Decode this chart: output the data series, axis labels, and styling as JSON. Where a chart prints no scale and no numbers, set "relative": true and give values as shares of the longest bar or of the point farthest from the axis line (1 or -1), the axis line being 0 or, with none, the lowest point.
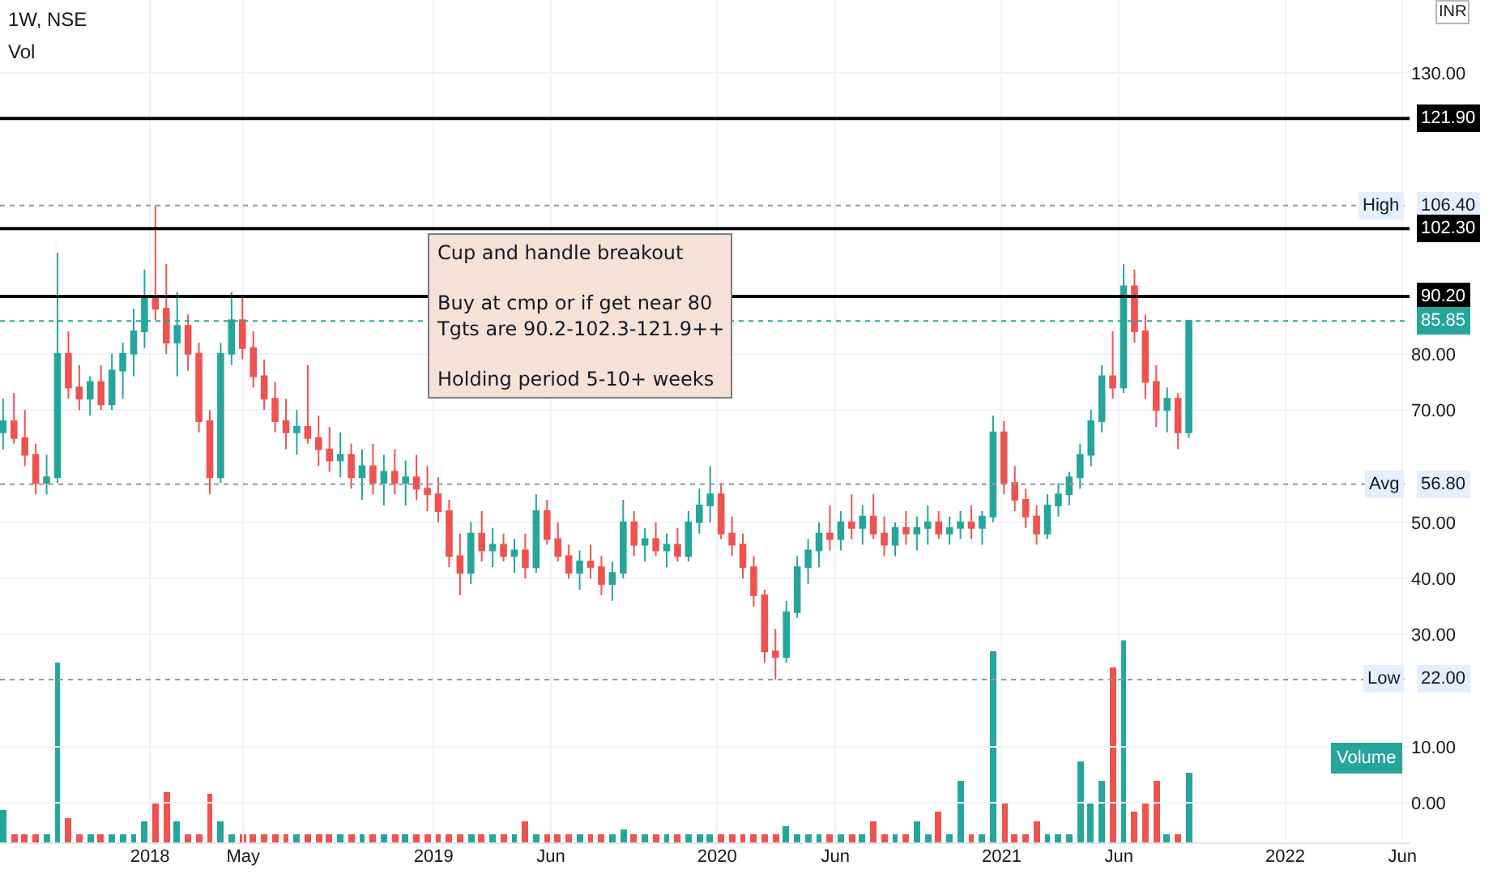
{
  "chart_data": [
    {
      "type": "candlestick",
      "title": "1W, NSE",
      "subtitle": "Vol",
      "ylabel": "INR",
      "x": [
        "2017-06-26",
        "2017-07-10",
        "2017-07-24",
        "2017-08-07",
        "2017-08-21",
        "2017-09-04",
        "2017-09-18",
        "2017-10-02",
        "2017-10-16",
        "2017-10-30",
        "2017-11-13",
        "2017-11-27",
        "2017-12-11",
        "2017-12-25",
        "2018-01-08",
        "2018-01-22",
        "2018-02-05",
        "2018-02-19",
        "2018-03-05",
        "2018-03-19",
        "2018-04-02",
        "2018-04-16",
        "2018-04-30",
        "2018-05-14",
        "2018-05-28",
        "2018-06-11",
        "2018-06-25",
        "2018-07-09",
        "2018-07-23",
        "2018-08-06",
        "2018-08-20",
        "2018-09-03",
        "2018-09-17",
        "2018-10-01",
        "2018-10-15",
        "2018-10-29",
        "2018-11-12",
        "2018-11-26",
        "2018-12-10",
        "2018-12-24",
        "2019-01-07",
        "2019-01-21",
        "2019-02-04",
        "2019-02-18",
        "2019-03-04",
        "2019-03-18",
        "2019-04-01",
        "2019-04-15",
        "2019-04-29",
        "2019-05-13",
        "2019-05-27",
        "2019-06-10",
        "2019-06-24",
        "2019-07-08",
        "2019-07-22",
        "2019-08-05",
        "2019-08-19",
        "2019-09-02",
        "2019-09-16",
        "2019-09-30",
        "2019-10-14",
        "2019-10-28",
        "2019-11-11",
        "2019-11-25",
        "2019-12-09",
        "2019-12-23",
        "2020-01-06",
        "2020-01-20",
        "2020-02-03",
        "2020-02-17",
        "2020-03-02",
        "2020-03-16",
        "2020-03-30",
        "2020-04-13",
        "2020-04-27",
        "2020-05-11",
        "2020-05-25",
        "2020-06-08",
        "2020-06-22",
        "2020-07-06",
        "2020-07-20",
        "2020-08-03",
        "2020-08-17",
        "2020-08-31",
        "2020-09-14",
        "2020-09-28",
        "2020-10-12",
        "2020-10-26",
        "2020-11-09",
        "2020-11-23",
        "2020-12-07",
        "2020-12-21",
        "2021-01-04",
        "2021-01-18",
        "2021-02-01",
        "2021-02-15",
        "2021-03-01",
        "2021-03-15",
        "2021-03-29",
        "2021-04-12",
        "2021-04-26",
        "2021-05-10",
        "2021-05-24",
        "2021-06-07",
        "2021-06-21",
        "2021-07-05",
        "2021-07-19",
        "2021-08-02",
        "2021-08-16",
        "2021-08-30"
      ],
      "ohlc": [
        [
          66,
          72,
          63,
          68
        ],
        [
          68,
          73,
          64,
          65
        ],
        [
          65,
          70,
          60,
          62
        ],
        [
          62,
          64,
          55,
          57
        ],
        [
          57,
          62,
          55,
          58
        ],
        [
          58,
          98,
          57,
          80
        ],
        [
          80,
          84,
          72,
          74
        ],
        [
          74,
          78,
          70,
          72
        ],
        [
          72,
          76,
          69,
          75
        ],
        [
          75,
          78,
          70,
          71
        ],
        [
          71,
          80,
          70,
          77
        ],
        [
          77,
          82,
          72,
          80
        ],
        [
          80,
          88,
          76,
          84
        ],
        [
          84,
          95,
          81,
          90
        ],
        [
          90,
          106.4,
          86,
          88
        ],
        [
          88,
          96,
          80,
          82
        ],
        [
          82,
          91,
          76,
          85
        ],
        [
          85,
          87,
          77,
          80
        ],
        [
          80,
          82,
          66,
          68
        ],
        [
          68,
          70,
          55,
          58
        ],
        [
          58,
          82,
          57,
          80
        ],
        [
          80,
          91,
          78,
          86
        ],
        [
          86,
          90,
          79,
          81
        ],
        [
          81,
          84,
          74,
          76
        ],
        [
          76,
          79,
          70,
          72
        ],
        [
          72,
          75,
          66,
          68
        ],
        [
          68,
          72,
          63,
          66
        ],
        [
          66,
          70,
          62,
          67
        ],
        [
          67,
          78,
          64,
          65
        ],
        [
          65,
          69,
          60,
          63
        ],
        [
          63,
          67,
          59,
          61
        ],
        [
          61,
          66,
          58,
          62
        ],
        [
          62,
          64,
          56,
          58
        ],
        [
          58,
          63,
          54,
          60
        ],
        [
          60,
          64,
          55,
          57
        ],
        [
          57,
          62,
          53,
          59
        ],
        [
          59,
          63,
          55,
          57
        ],
        [
          57,
          61,
          53,
          58
        ],
        [
          58,
          62,
          54,
          56
        ],
        [
          56,
          60,
          52,
          55
        ],
        [
          55,
          58,
          50,
          52
        ],
        [
          52,
          54,
          42,
          44
        ],
        [
          44,
          48,
          37,
          41
        ],
        [
          41,
          50,
          39,
          48
        ],
        [
          48,
          52,
          43,
          45
        ],
        [
          45,
          49,
          42,
          46
        ],
        [
          46,
          48,
          43,
          44
        ],
        [
          44,
          47,
          41,
          45
        ],
        [
          45,
          48,
          40,
          42
        ],
        [
          42,
          55,
          41,
          52
        ],
        [
          52,
          54,
          46,
          47
        ],
        [
          47,
          50,
          43,
          44
        ],
        [
          44,
          46,
          40,
          41
        ],
        [
          41,
          45,
          38,
          43
        ],
        [
          43,
          46,
          40,
          42
        ],
        [
          42,
          44,
          37,
          39
        ],
        [
          39,
          43,
          36,
          41
        ],
        [
          41,
          54,
          40,
          50
        ],
        [
          50,
          52,
          44,
          46
        ],
        [
          46,
          49,
          43,
          47
        ],
        [
          47,
          50,
          44,
          45
        ],
        [
          45,
          48,
          42,
          46
        ],
        [
          46,
          49,
          43,
          44
        ],
        [
          44,
          52,
          43,
          50
        ],
        [
          50,
          56,
          48,
          53
        ],
        [
          53,
          60,
          50,
          55
        ],
        [
          55,
          57,
          47,
          48
        ],
        [
          48,
          51,
          44,
          46
        ],
        [
          46,
          48,
          40,
          42
        ],
        [
          42,
          44,
          35,
          37
        ],
        [
          37,
          38,
          25,
          27
        ],
        [
          27,
          31,
          22,
          26
        ],
        [
          26,
          36,
          25,
          34
        ],
        [
          34,
          44,
          33,
          42
        ],
        [
          42,
          47,
          39,
          45
        ],
        [
          45,
          50,
          42,
          48
        ],
        [
          48,
          53,
          45,
          47
        ],
        [
          47,
          52,
          45,
          50
        ],
        [
          50,
          55,
          47,
          49
        ],
        [
          49,
          53,
          46,
          51
        ],
        [
          51,
          55,
          47,
          48
        ],
        [
          48,
          51,
          44,
          46
        ],
        [
          46,
          50,
          44,
          49
        ],
        [
          49,
          52,
          46,
          48
        ],
        [
          48,
          51,
          45,
          49
        ],
        [
          49,
          53,
          46,
          50
        ],
        [
          50,
          52,
          47,
          48
        ],
        [
          48,
          51,
          46,
          49
        ],
        [
          49,
          52,
          47,
          50
        ],
        [
          50,
          53,
          47,
          49
        ],
        [
          49,
          52,
          46,
          51
        ],
        [
          51,
          69,
          50,
          66
        ],
        [
          66,
          68,
          55,
          57
        ],
        [
          57,
          60,
          52,
          54
        ],
        [
          54,
          56,
          49,
          51
        ],
        [
          51,
          53,
          46,
          48
        ],
        [
          48,
          55,
          47,
          53
        ],
        [
          53,
          57,
          51,
          55
        ],
        [
          55,
          59,
          53,
          58
        ],
        [
          58,
          64,
          56,
          62
        ],
        [
          62,
          70,
          60,
          68
        ],
        [
          68,
          78,
          66,
          76
        ],
        [
          76,
          84,
          72,
          74
        ],
        [
          74,
          96,
          73,
          92
        ],
        [
          92,
          95,
          82,
          84
        ],
        [
          84,
          87,
          72,
          75
        ],
        [
          75,
          78,
          67,
          70
        ],
        [
          70,
          74,
          66,
          72
        ],
        [
          72,
          73,
          63,
          66
        ],
        [
          66,
          86,
          65,
          85.85
        ]
      ],
      "xlim": [
        "2017-06-22",
        "2022-06-10"
      ],
      "xticks": [
        {
          "value": "2018-01-01",
          "label": "2018"
        },
        {
          "value": "2018-05-01",
          "label": "May"
        },
        {
          "value": "2019-01-01",
          "label": "2019"
        },
        {
          "value": "2019-06-01",
          "label": "Jun"
        },
        {
          "value": "2020-01-01",
          "label": "2020"
        },
        {
          "value": "2020-06-01",
          "label": "Jun"
        },
        {
          "value": "2021-01-01",
          "label": "2021"
        },
        {
          "value": "2021-06-01",
          "label": "Jun"
        },
        {
          "value": "2022-01-01",
          "label": "2022"
        },
        {
          "value": "2022-06-01",
          "label": "Jun"
        }
      ],
      "ylim": [
        -7,
        143
      ],
      "yticks": [
        {
          "value": 0,
          "label": "0.00"
        },
        {
          "value": 10,
          "label": "10.00"
        },
        {
          "value": 30,
          "label": "30.00"
        },
        {
          "value": 40,
          "label": "40.00"
        },
        {
          "value": 50,
          "label": "50.00"
        },
        {
          "value": 70,
          "label": "70.00"
        },
        {
          "value": 80,
          "label": "80.00"
        },
        {
          "value": 130,
          "label": "130.00"
        }
      ],
      "grid": true,
      "ref_lines": [
        {
          "axis": "y",
          "value": 121.9,
          "label": "121.90",
          "color": "#000000",
          "line_style": "solid"
        },
        {
          "axis": "y",
          "value": 106.4,
          "label": "106.40",
          "color": "#9598a1",
          "line_style": "dotted"
        },
        {
          "axis": "y",
          "value": 102.3,
          "label": "102.30",
          "color": "#000000",
          "line_style": "solid"
        },
        {
          "axis": "y",
          "value": 90.2,
          "label": "90.20",
          "color": "#000000",
          "line_style": "solid"
        },
        {
          "axis": "y",
          "value": 85.85,
          "label": "85.85",
          "color": "#26a69a",
          "line_style": "dotted"
        },
        {
          "axis": "y",
          "value": 56.8,
          "label": "56.80",
          "color": "#9598a1",
          "line_style": "dotted"
        },
        {
          "axis": "y",
          "value": 22,
          "label": "22.00",
          "color": "#9598a1",
          "line_style": "dotted"
        }
      ],
      "annotations": [
        "Cup and handle breakout\n\nBuy at cmp or if get near 80\nTgts are 90.2-102.3-121.9++\n\nHolding period 5-10+ weeks",
        {
          "text": "High",
          "y": 106.4
        },
        {
          "text": "Avg",
          "y": 56.8
        },
        {
          "text": "Low",
          "y": 22
        }
      ]
    },
    {
      "type": "bar",
      "title": "Volume",
      "relative": true,
      "tick_labels": false,
      "xlim": [
        "2017-06-22",
        "2022-06-10"
      ],
      "x": [
        "2017-06-26",
        "2017-07-10",
        "2017-07-24",
        "2017-08-07",
        "2017-08-21",
        "2017-09-04",
        "2017-09-18",
        "2017-10-02",
        "2017-10-16",
        "2017-10-30",
        "2017-11-13",
        "2017-11-27",
        "2017-12-11",
        "2017-12-25",
        "2018-01-08",
        "2018-01-22",
        "2018-02-05",
        "2018-02-19",
        "2018-03-05",
        "2018-03-19",
        "2018-04-02",
        "2018-04-16",
        "2018-04-30",
        "2018-05-14",
        "2018-05-28",
        "2018-06-11",
        "2018-06-25",
        "2018-07-09",
        "2018-07-23",
        "2018-08-06",
        "2018-08-20",
        "2018-09-03",
        "2018-09-17",
        "2018-10-01",
        "2018-10-15",
        "2018-10-29",
        "2018-11-12",
        "2018-11-26",
        "2018-12-10",
        "2018-12-24",
        "2019-01-07",
        "2019-01-21",
        "2019-02-04",
        "2019-02-18",
        "2019-03-04",
        "2019-03-18",
        "2019-04-01",
        "2019-04-15",
        "2019-04-29",
        "2019-05-13",
        "2019-05-27",
        "2019-06-10",
        "2019-06-24",
        "2019-07-08",
        "2019-07-22",
        "2019-08-05",
        "2019-08-19",
        "2019-09-02",
        "2019-09-16",
        "2019-09-30",
        "2019-10-14",
        "2019-10-28",
        "2019-11-11",
        "2019-11-25",
        "2019-12-09",
        "2019-12-23",
        "2020-01-06",
        "2020-01-20",
        "2020-02-03",
        "2020-02-17",
        "2020-03-02",
        "2020-03-16",
        "2020-03-30",
        "2020-04-13",
        "2020-04-27",
        "2020-05-11",
        "2020-05-25",
        "2020-06-08",
        "2020-06-22",
        "2020-07-06",
        "2020-07-20",
        "2020-08-03",
        "2020-08-17",
        "2020-08-31",
        "2020-09-14",
        "2020-09-28",
        "2020-10-12",
        "2020-10-26",
        "2020-11-09",
        "2020-11-23",
        "2020-12-07",
        "2020-12-21",
        "2021-01-04",
        "2021-01-18",
        "2021-02-01",
        "2021-02-15",
        "2021-03-01",
        "2021-03-15",
        "2021-03-29",
        "2021-04-12",
        "2021-04-26",
        "2021-05-10",
        "2021-05-24",
        "2021-06-07",
        "2021-06-21",
        "2021-07-05",
        "2021-07-19",
        "2021-08-02",
        "2021-08-16",
        "2021-08-30"
      ],
      "values": [
        0.16,
        0.04,
        0.04,
        0.04,
        0.04,
        0.89,
        0.12,
        0.04,
        0.04,
        0.04,
        0.04,
        0.04,
        0.04,
        0.1,
        0.2,
        0.25,
        0.1,
        0.04,
        0.04,
        0.24,
        0.1,
        0.04,
        0.04,
        0.04,
        0.04,
        0.04,
        0.04,
        0.04,
        0.04,
        0.04,
        0.04,
        0.04,
        0.04,
        0.04,
        0.04,
        0.04,
        0.04,
        0.04,
        0.04,
        0.04,
        0.04,
        0.04,
        0.04,
        0.04,
        0.04,
        0.04,
        0.04,
        0.04,
        0.1,
        0.04,
        0.04,
        0.04,
        0.04,
        0.04,
        0.04,
        0.04,
        0.04,
        0.06,
        0.04,
        0.04,
        0.04,
        0.04,
        0.04,
        0.04,
        0.04,
        0.04,
        0.04,
        0.04,
        0.04,
        0.04,
        0.04,
        0.04,
        0.08,
        0.04,
        0.04,
        0.04,
        0.04,
        0.04,
        0.04,
        0.04,
        0.1,
        0.04,
        0.04,
        0.04,
        0.1,
        0.04,
        0.15,
        0.04,
        0.3,
        0.04,
        0.04,
        0.94,
        0.2,
        0.04,
        0.04,
        0.1,
        0.04,
        0.04,
        0.04,
        0.4,
        0.2,
        0.3,
        0.86,
        1,
        0.15,
        0.2,
        0.3,
        0.04,
        0.04,
        0.34
      ],
      "colors": [
        "#26a69a",
        "#ef5350",
        "#ef5350",
        "#ef5350",
        "#26a69a",
        "#26a69a",
        "#ef5350",
        "#ef5350",
        "#26a69a",
        "#ef5350",
        "#26a69a",
        "#26a69a",
        "#26a69a",
        "#26a69a",
        "#ef5350",
        "#ef5350",
        "#26a69a",
        "#ef5350",
        "#ef5350",
        "#ef5350",
        "#26a69a",
        "#26a69a",
        "#ef5350",
        "#ef5350",
        "#ef5350",
        "#ef5350",
        "#ef5350",
        "#26a69a",
        "#ef5350",
        "#ef5350",
        "#ef5350",
        "#26a69a",
        "#ef5350",
        "#26a69a",
        "#ef5350",
        "#26a69a",
        "#ef5350",
        "#26a69a",
        "#ef5350",
        "#ef5350",
        "#ef5350",
        "#ef5350",
        "#ef5350",
        "#26a69a",
        "#ef5350",
        "#26a69a",
        "#ef5350",
        "#26a69a",
        "#ef5350",
        "#26a69a",
        "#ef5350",
        "#ef5350",
        "#ef5350",
        "#26a69a",
        "#ef5350",
        "#ef5350",
        "#26a69a",
        "#26a69a",
        "#ef5350",
        "#26a69a",
        "#ef5350",
        "#26a69a",
        "#ef5350",
        "#26a69a",
        "#26a69a",
        "#26a69a",
        "#ef5350",
        "#ef5350",
        "#ef5350",
        "#ef5350",
        "#ef5350",
        "#ef5350",
        "#26a69a",
        "#26a69a",
        "#26a69a",
        "#26a69a",
        "#ef5350",
        "#26a69a",
        "#ef5350",
        "#26a69a",
        "#ef5350",
        "#ef5350",
        "#26a69a",
        "#ef5350",
        "#26a69a",
        "#26a69a",
        "#ef5350",
        "#26a69a",
        "#26a69a",
        "#ef5350",
        "#26a69a",
        "#26a69a",
        "#ef5350",
        "#ef5350",
        "#ef5350",
        "#ef5350",
        "#26a69a",
        "#26a69a",
        "#26a69a",
        "#26a69a",
        "#26a69a",
        "#26a69a",
        "#ef5350",
        "#26a69a",
        "#ef5350",
        "#ef5350",
        "#ef5350",
        "#26a69a",
        "#ef5350",
        "#26a69a"
      ]
    }
  ]
}
